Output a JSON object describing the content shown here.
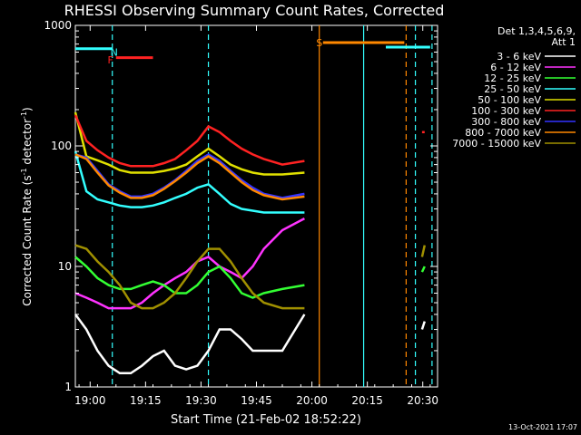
{
  "chart_data": {
    "type": "line",
    "title": "RHESSI Observing Summary Count Rates, Corrected",
    "xlabel": "Start Time (21-Feb-02 18:52:22)",
    "ylabel_main": "Corrected Count Rate (s",
    "ylabel_sup1": "-1",
    "ylabel_mid": " detector",
    "ylabel_sup2": "-1",
    "ylabel_end": ")",
    "y_scale": "log",
    "ylim": [
      1,
      1000
    ],
    "xlim_minutes": [
      -4,
      94
    ],
    "x_tick_labels": [
      {
        "label": "19:00",
        "minute": 0
      },
      {
        "label": "19:15",
        "minute": 15
      },
      {
        "label": "19:30",
        "minute": 30
      },
      {
        "label": "19:45",
        "minute": 45
      },
      {
        "label": "20:00",
        "minute": 60
      },
      {
        "label": "20:15",
        "minute": 75
      },
      {
        "label": "20:30",
        "minute": 90
      }
    ],
    "y_tick_labels": [
      {
        "label": "1",
        "value": 1
      },
      {
        "label": "10",
        "value": 10
      },
      {
        "label": "100",
        "value": 100
      },
      {
        "label": "1000",
        "value": 1000
      }
    ],
    "legend_header": [
      "Det 1,3,4,5,6,9,",
      "Att 1"
    ],
    "legend_position": "right",
    "series": [
      {
        "name": "3 - 6 keV",
        "color": "#ffffff",
        "values": [
          4,
          3,
          2,
          1.5,
          1.3,
          1.3,
          1.5,
          1.8,
          2,
          1.5,
          1.4,
          1.5,
          2,
          3,
          3,
          2.5,
          2,
          2,
          2,
          4
        ]
      },
      {
        "name": "6 - 12 keV",
        "color": "#ff33ff",
        "values": [
          6,
          5.5,
          5,
          4.5,
          4.5,
          4.5,
          5,
          6,
          7,
          8,
          9,
          11,
          12,
          10,
          9,
          8,
          10,
          14,
          20,
          25
        ]
      },
      {
        "name": "12 - 25 keV",
        "color": "#33ff33",
        "values": [
          12,
          10,
          8,
          7,
          6.5,
          6.5,
          7,
          7.5,
          7,
          6,
          6,
          7,
          9,
          10,
          8,
          6,
          5.5,
          6,
          6.5,
          7
        ]
      },
      {
        "name": "25 - 50 keV",
        "color": "#33ffff",
        "values": [
          90,
          42,
          36,
          34,
          32,
          31,
          31,
          32,
          34,
          37,
          40,
          45,
          48,
          40,
          33,
          30,
          29,
          28,
          28,
          28
        ]
      },
      {
        "name": "50 - 100 keV",
        "color": "#e0e000",
        "values": [
          190,
          82,
          76,
          70,
          63,
          60,
          60,
          60,
          62,
          65,
          70,
          82,
          95,
          82,
          70,
          64,
          60,
          58,
          58,
          60
        ]
      },
      {
        "name": "100 - 300 keV",
        "color": "#ff2222",
        "values": [
          180,
          110,
          92,
          80,
          72,
          68,
          68,
          68,
          72,
          78,
          92,
          110,
          145,
          130,
          110,
          95,
          85,
          78,
          70,
          75
        ]
      },
      {
        "name": "300 - 800 keV",
        "color": "#3333ff",
        "values": [
          85,
          80,
          62,
          48,
          42,
          38,
          38,
          40,
          45,
          52,
          62,
          75,
          85,
          75,
          62,
          52,
          45,
          40,
          37,
          40
        ]
      },
      {
        "name": "800 - 7000 keV",
        "color": "#ff8800",
        "values": [
          85,
          78,
          60,
          47,
          41,
          37,
          37,
          39,
          44,
          51,
          60,
          72,
          82,
          72,
          60,
          50,
          43,
          39,
          36,
          38
        ]
      },
      {
        "name": "7000 - 15000 keV",
        "color": "#a09000",
        "values": [
          15,
          14,
          11,
          9,
          7,
          5,
          4.5,
          4.5,
          5,
          6,
          8,
          11,
          14,
          14,
          11,
          8,
          6,
          5,
          4.5,
          4.5
        ]
      }
    ],
    "series_x_minutes": [
      -4,
      -1,
      2,
      5,
      8,
      11,
      14,
      17,
      20,
      23,
      26,
      29,
      32,
      35,
      38,
      41,
      44,
      47,
      52,
      58
    ],
    "late_segments": [
      {
        "name": "7000 - 15000 keV",
        "x": [
          89.8,
          90.5
        ],
        "y": [
          12,
          15
        ]
      },
      {
        "name": "12 - 25 keV",
        "x": [
          89.8,
          90.5
        ],
        "y": [
          9,
          10
        ]
      },
      {
        "name": "100 - 300 keV",
        "x": [
          89.8,
          90.5
        ],
        "y": [
          130,
          130
        ]
      },
      {
        "name": "3 - 6 keV",
        "x": [
          89.8,
          90.5
        ],
        "y": [
          3,
          3.5
        ]
      }
    ],
    "annotations": [
      {
        "label": "N",
        "color": "#33ffff",
        "minute": 6.5,
        "y": 600
      },
      {
        "label": "F",
        "color": "#ff2222",
        "minute": 5.5,
        "y": 520
      },
      {
        "label": "S",
        "color": "#ff8800",
        "minute": 62,
        "y": 720
      }
    ],
    "time_bars": [
      {
        "color": "#33ffff",
        "x": [
          -4,
          6
        ],
        "y": 640
      },
      {
        "color": "#ff2222",
        "x": [
          7,
          17
        ],
        "y": 540
      },
      {
        "color": "#ff8800",
        "x": [
          63,
          85
        ],
        "y": 720
      },
      {
        "color": "#33ffff",
        "x": [
          80,
          92
        ],
        "y": 660
      }
    ],
    "vertical_lines": [
      {
        "color": "#33ffff",
        "minute": 6,
        "dashed": true
      },
      {
        "color": "#33ffff",
        "minute": 32,
        "dashed": true
      },
      {
        "color": "#ff8800",
        "minute": 62,
        "dashed": false
      },
      {
        "color": "#33ffff",
        "minute": 74,
        "dashed": false
      },
      {
        "color": "#ff8800",
        "minute": 85.5,
        "dashed": true
      },
      {
        "color": "#33ffff",
        "minute": 88,
        "dashed": true
      },
      {
        "color": "#33ffff",
        "minute": 92.5,
        "dashed": true
      }
    ]
  },
  "footer": {
    "timestamp": "13-Oct-2021 17:07"
  }
}
